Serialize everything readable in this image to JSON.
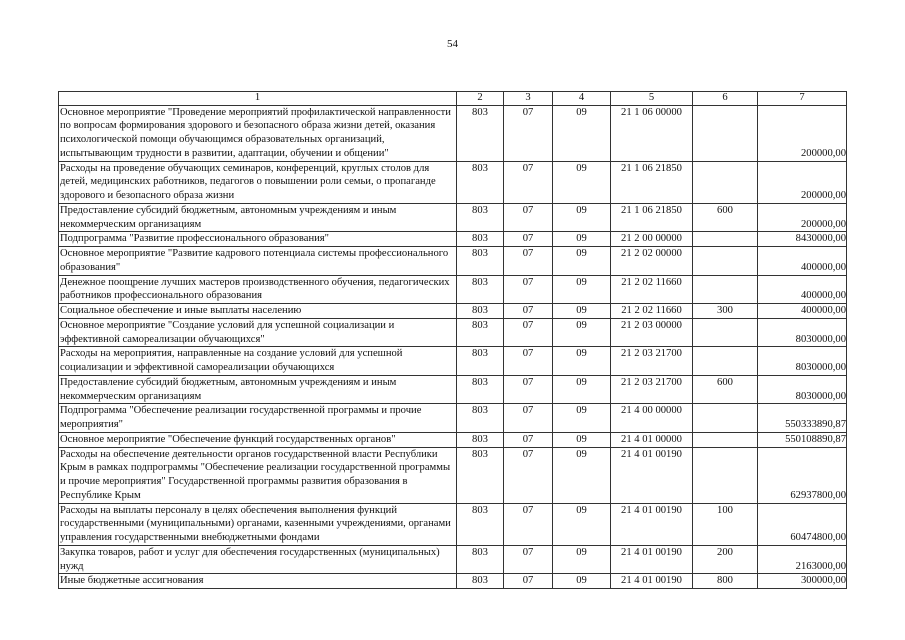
{
  "page_number": "54",
  "table": {
    "headers": [
      "1",
      "2",
      "3",
      "4",
      "5",
      "6",
      "7"
    ],
    "rows": [
      {
        "name": "Основное мероприятие \"Проведение мероприятий профилактической направленности по вопросам формирования здорового и безопасного образа жизни детей, оказания психологической помощи обучающимся образовательных организаций, испытывающим трудности в развитии, адаптации, обучении и общении\"",
        "c2": "803",
        "c3": "07",
        "c4": "09",
        "c5": "21 1 06 00000",
        "c6": "",
        "c7": "200000,00"
      },
      {
        "name": "Расходы на проведение обучающих семинаров, конференций, круглых столов для детей, медицинских работников, педагогов о повышении роли семьи, о пропаганде здорового и безопасного образа жизни",
        "c2": "803",
        "c3": "07",
        "c4": "09",
        "c5": "21 1 06 21850",
        "c6": "",
        "c7": "200000,00"
      },
      {
        "name": "Предоставление субсидий бюджетным, автономным учреждениям и иным некоммерческим организациям",
        "c2": "803",
        "c3": "07",
        "c4": "09",
        "c5": "21 1 06 21850",
        "c6": "600",
        "c7": "200000,00"
      },
      {
        "name": "Подпрограмма \"Развитие профессионального образования\"",
        "c2": "803",
        "c3": "07",
        "c4": "09",
        "c5": "21 2 00 00000",
        "c6": "",
        "c7": "8430000,00"
      },
      {
        "name": "Основное мероприятие \"Развитие кадрового потенциала системы профессионального образования\"",
        "c2": "803",
        "c3": "07",
        "c4": "09",
        "c5": "21 2 02 00000",
        "c6": "",
        "c7": "400000,00"
      },
      {
        "name": "Денежное поощрение лучших мастеров производственного обучения, педагогических работников профессионального образования",
        "c2": "803",
        "c3": "07",
        "c4": "09",
        "c5": "21 2 02 11660",
        "c6": "",
        "c7": "400000,00"
      },
      {
        "name": "Социальное обеспечение и иные выплаты населению",
        "c2": "803",
        "c3": "07",
        "c4": "09",
        "c5": "21 2 02 11660",
        "c6": "300",
        "c7": "400000,00"
      },
      {
        "name": "Основное мероприятие \"Создание условий для успешной социализации и эффективной самореализации обучающихся\"",
        "c2": "803",
        "c3": "07",
        "c4": "09",
        "c5": "21 2 03 00000",
        "c6": "",
        "c7": "8030000,00"
      },
      {
        "name": "Расходы на мероприятия, направленные на создание условий для успешной социализации и эффективной самореализации обучающихся",
        "c2": "803",
        "c3": "07",
        "c4": "09",
        "c5": "21 2 03 21700",
        "c6": "",
        "c7": "8030000,00"
      },
      {
        "name": "Предоставление субсидий бюджетным, автономным учреждениям и иным некоммерческим организациям",
        "c2": "803",
        "c3": "07",
        "c4": "09",
        "c5": "21 2 03 21700",
        "c6": "600",
        "c7": "8030000,00"
      },
      {
        "name": "Подпрограмма \"Обеспечение реализации государственной программы и прочие мероприятия\"",
        "c2": "803",
        "c3": "07",
        "c4": "09",
        "c5": "21 4 00 00000",
        "c6": "",
        "c7": "550333890,87"
      },
      {
        "name": "Основное мероприятие \"Обеспечение функций государственных органов\"",
        "c2": "803",
        "c3": "07",
        "c4": "09",
        "c5": "21 4 01 00000",
        "c6": "",
        "c7": "550108890,87"
      },
      {
        "name": "Расходы на обеспечение деятельности органов государственной власти Республики Крым в рамках подпрограммы \"Обеспечение реализации государственной программы и прочие мероприятия\" Государственной программы развития образования в Республике Крым",
        "c2": "803",
        "c3": "07",
        "c4": "09",
        "c5": "21 4 01 00190",
        "c6": "",
        "c7": "62937800,00"
      },
      {
        "name": "Расходы на выплаты персоналу в целях обеспечения выполнения функций государственными (муниципальными) органами, казенными учреждениями, органами управления государственными внебюджетными фондами",
        "c2": "803",
        "c3": "07",
        "c4": "09",
        "c5": "21 4 01 00190",
        "c6": "100",
        "c7": "60474800,00"
      },
      {
        "name": "Закупка товаров, работ и услуг для обеспечения государственных (муниципальных) нужд",
        "c2": "803",
        "c3": "07",
        "c4": "09",
        "c5": "21 4 01 00190",
        "c6": "200",
        "c7": "2163000,00"
      },
      {
        "name": "Иные бюджетные ассигнования",
        "c2": "803",
        "c3": "07",
        "c4": "09",
        "c5": "21 4 01 00190",
        "c6": "800",
        "c7": "300000,00"
      }
    ]
  }
}
